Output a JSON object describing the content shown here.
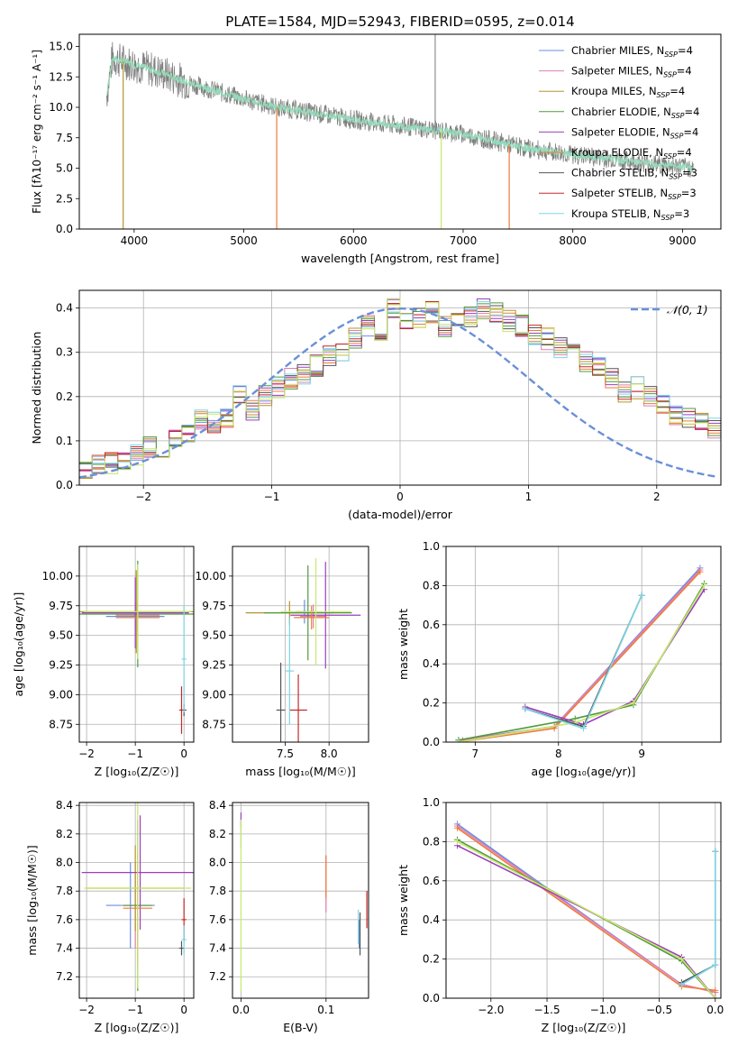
{
  "figure_title": "PLATE=1584, MJD=52943, FIBERID=0595, z=0.014",
  "colors": {
    "Chabrier MILES": "#6c8ee0",
    "Salpeter MILES": "#e27fb2",
    "Kroupa MILES": "#b5952d",
    "Chabrier ELODIE": "#4f9a3f",
    "Salpeter ELODIE": "#9a3fbf",
    "Kroupa ELODIE": "#ee7b3a",
    "Chabrier STELIB": "#555555",
    "Salpeter STELIB": "#c42a2a",
    "Kroupa STELIB": "#7dd6e6",
    "lime": "#c8e86a",
    "gaussian": "#6a90d8",
    "grid": "#b0b0b0"
  },
  "chart_data": [
    {
      "id": "spectrum",
      "type": "line",
      "title": "PLATE=1584, MJD=52943, FIBERID=0595, z=0.014",
      "xlabel": "wavelength [Angstrom, rest frame]",
      "ylabel": "Flux [fλ10⁻¹⁷ erg cm⁻² s⁻¹ A⁻¹]",
      "xlim": [
        3500,
        9350
      ],
      "ylim": [
        0,
        16
      ],
      "xticks": [
        4000,
        5000,
        6000,
        7000,
        8000,
        9000
      ],
      "yticks": [
        0.0,
        2.5,
        5.0,
        7.5,
        10.0,
        12.5,
        15.0
      ],
      "grid": false,
      "legend_position": "top-right",
      "legend": [
        "Chabrier MILES, N_SSP=4",
        "Salpeter MILES, N_SSP=4",
        "Kroupa MILES, N_SSP=4",
        "Chabrier ELODIE, N_SSP=4",
        "Salpeter ELODIE, N_SSP=4",
        "Kroupa ELODIE, N_SSP=4",
        "Chabrier STELIB, N_SSP=3",
        "Salpeter STELIB, N_SSP=3",
        "Kroupa STELIB, N_SSP=3"
      ],
      "data_envelope": {
        "x": [
          3750,
          3800,
          3900,
          4000,
          4200,
          4500,
          4800,
          5000,
          5300,
          5600,
          6000,
          6300,
          6600,
          7000,
          7300,
          7600,
          8000,
          8500,
          9000,
          9100
        ],
        "y": [
          11,
          14,
          13.8,
          13.5,
          13.0,
          12.0,
          11.2,
          10.7,
          10.0,
          9.6,
          9.0,
          8.6,
          8.3,
          7.8,
          7.2,
          6.6,
          6.1,
          5.6,
          5.1,
          5.0
        ]
      },
      "model_edges": [
        {
          "series": "Kroupa MILES",
          "x_end": 3900
        },
        {
          "series": "Kroupa ELODIE",
          "x_end": 5300
        },
        {
          "series": "lime",
          "x_end": 6800
        },
        {
          "series": "Kroupa ELODIE",
          "x_end": 7420
        }
      ],
      "sky_line_x": 6745
    },
    {
      "id": "residuals",
      "type": "line",
      "xlabel": "(data-model)/error",
      "ylabel": "Normed distribution",
      "xlim": [
        -2.5,
        2.5
      ],
      "ylim": [
        0,
        0.44
      ],
      "xticks": [
        -2,
        -1,
        0,
        1,
        2
      ],
      "yticks": [
        0.0,
        0.1,
        0.2,
        0.3,
        0.4
      ],
      "grid": true,
      "legend_position": "top-right",
      "legend": [
        "𝒩(0, 1)"
      ],
      "bin_width": 0.1,
      "bin_start": -2.5,
      "histogram_base": [
        0.04,
        0.045,
        0.05,
        0.06,
        0.07,
        0.085,
        0.08,
        0.1,
        0.12,
        0.15,
        0.14,
        0.15,
        0.2,
        0.17,
        0.2,
        0.22,
        0.24,
        0.25,
        0.27,
        0.29,
        0.3,
        0.33,
        0.36,
        0.35,
        0.4,
        0.37,
        0.38,
        0.39,
        0.36,
        0.37,
        0.38,
        0.4,
        0.39,
        0.37,
        0.36,
        0.34,
        0.33,
        0.31,
        0.3,
        0.28,
        0.27,
        0.24,
        0.21,
        0.22,
        0.2,
        0.18,
        0.16,
        0.15,
        0.14,
        0.13
      ],
      "gaussian": {
        "mu": 0,
        "sigma": 1,
        "name": "𝒩(0, 1)"
      }
    },
    {
      "id": "age_vs_Z",
      "type": "scatter",
      "xlabel": "Z [log₁₀(Z/Z☉)]",
      "ylabel": "age  [log₁₀(age/yr)]",
      "xlim": [
        -2.15,
        0.2
      ],
      "ylim": [
        8.6,
        10.25
      ],
      "xticks": [
        -2,
        -1,
        0
      ],
      "yticks": [
        8.75,
        9.0,
        9.25,
        9.5,
        9.75,
        10.0
      ],
      "grid": true,
      "points": [
        {
          "series": "Chabrier MILES",
          "x": -1.0,
          "y": 9.66,
          "xerr": 0.6,
          "yerr": 0.12
        },
        {
          "series": "Salpeter MILES",
          "x": -0.95,
          "y": 9.67,
          "xerr": 0.45,
          "yerr": 0.1
        },
        {
          "series": "Kroupa MILES",
          "x": -0.98,
          "y": 9.7,
          "xerr": 1.2,
          "yerr": 0.35
        },
        {
          "series": "Chabrier ELODIE",
          "x": -0.95,
          "y": 9.68,
          "xerr": 1.2,
          "yerr": 0.45
        },
        {
          "series": "Salpeter ELODIE",
          "x": -1.0,
          "y": 9.69,
          "xerr": 1.1,
          "yerr": 0.3
        },
        {
          "series": "Kroupa ELODIE",
          "x": -0.95,
          "y": 9.65,
          "xerr": 0.45,
          "yerr": 0.15
        },
        {
          "series": "Chabrier STELIB",
          "x": 0.0,
          "y": 8.87,
          "xerr": 0.05,
          "yerr": 0.05
        },
        {
          "series": "Salpeter STELIB",
          "x": -0.05,
          "y": 8.87,
          "xerr": 0.05,
          "yerr": 0.2
        },
        {
          "series": "Kroupa STELIB",
          "x": 0.0,
          "y": 9.3,
          "xerr": 0.05,
          "yerr": 0.45
        },
        {
          "series": "lime",
          "x": -0.95,
          "y": 9.7,
          "xerr": 1.1,
          "yerr": 0.4
        }
      ]
    },
    {
      "id": "age_vs_mass",
      "type": "scatter",
      "xlabel": "mass [log₁₀(M/M☉)]",
      "ylabel": "",
      "xlim": [
        6.9,
        8.45
      ],
      "ylim": [
        8.6,
        10.25
      ],
      "xticks": [
        7.5,
        8.0
      ],
      "yticks": [
        8.75,
        9.0,
        9.25,
        9.5,
        9.75,
        10.0
      ],
      "grid": true,
      "points": [
        {
          "series": "Chabrier MILES",
          "x": 7.72,
          "y": 9.7,
          "xerr": 0.1,
          "yerr": 0.1
        },
        {
          "series": "Salpeter MILES",
          "x": 7.82,
          "y": 9.66,
          "xerr": 0.15,
          "yerr": 0.1
        },
        {
          "series": "Kroupa MILES",
          "x": 7.55,
          "y": 9.69,
          "xerr": 0.5,
          "yerr": 0.1
        },
        {
          "series": "Chabrier ELODIE",
          "x": 7.76,
          "y": 9.69,
          "xerr": 0.5,
          "yerr": 0.4
        },
        {
          "series": "Salpeter ELODIE",
          "x": 7.96,
          "y": 9.67,
          "xerr": 0.4,
          "yerr": 0.45
        },
        {
          "series": "Kroupa ELODIE",
          "x": 7.8,
          "y": 9.65,
          "xerr": 0.2,
          "yerr": 0.1
        },
        {
          "series": "Chabrier STELIB",
          "x": 7.45,
          "y": 8.87,
          "xerr": 0.05,
          "yerr": 0.4
        },
        {
          "series": "Salpeter STELIB",
          "x": 7.65,
          "y": 8.87,
          "xerr": 0.1,
          "yerr": 0.3
        },
        {
          "series": "Kroupa STELIB",
          "x": 7.55,
          "y": 9.2,
          "xerr": 0.05,
          "yerr": 0.45
        },
        {
          "series": "lime",
          "x": 7.85,
          "y": 9.7,
          "xerr": 0.4,
          "yerr": 0.45
        }
      ]
    },
    {
      "id": "weight_vs_age",
      "type": "line",
      "xlabel": "age  [log₁₀(age/yr)]",
      "ylabel": "mass weight",
      "xlim": [
        6.65,
        9.95
      ],
      "ylim": [
        0,
        1.0
      ],
      "xticks": [
        7,
        8,
        9
      ],
      "yticks": [
        0.0,
        0.2,
        0.4,
        0.6,
        0.8,
        1.0
      ],
      "grid": true,
      "series": [
        {
          "key": "Chabrier MILES",
          "x": [
            6.8,
            7.95,
            9.7
          ],
          "y": [
            0.01,
            0.08,
            0.89
          ]
        },
        {
          "key": "Salpeter MILES",
          "x": [
            6.85,
            7.95,
            9.7
          ],
          "y": [
            0.01,
            0.08,
            0.88
          ]
        },
        {
          "key": "Kroupa ELODIE",
          "x": [
            6.8,
            7.95,
            9.7
          ],
          "y": [
            0.0,
            0.07,
            0.87
          ]
        },
        {
          "key": "Chabrier ELODIE",
          "x": [
            6.8,
            8.2,
            8.9,
            9.75
          ],
          "y": [
            0.01,
            0.12,
            0.19,
            0.81
          ]
        },
        {
          "key": "Salpeter ELODIE",
          "x": [
            7.6,
            8.3,
            8.9,
            9.75
          ],
          "y": [
            0.18,
            0.09,
            0.21,
            0.78
          ]
        },
        {
          "key": "lime",
          "x": [
            6.8,
            8.2,
            8.9,
            9.75
          ],
          "y": [
            0.0,
            0.1,
            0.2,
            0.8
          ]
        },
        {
          "key": "Chabrier STELIB",
          "x": [
            7.6,
            8.3,
            9.0
          ],
          "y": [
            0.17,
            0.08,
            0.75
          ]
        },
        {
          "key": "Kroupa STELIB",
          "x": [
            7.6,
            8.3,
            9.0
          ],
          "y": [
            0.17,
            0.07,
            0.75
          ]
        }
      ]
    },
    {
      "id": "mass_vs_Z",
      "type": "scatter",
      "xlabel": "Z [log₁₀(Z/Z☉)]",
      "ylabel": "mass [log₁₀(M/M☉)]",
      "xlim": [
        -2.15,
        0.2
      ],
      "ylim": [
        7.05,
        8.42
      ],
      "xticks": [
        -2,
        -1,
        0
      ],
      "yticks": [
        7.2,
        7.4,
        7.6,
        7.8,
        8.0,
        8.2,
        8.4
      ],
      "grid": true,
      "points": [
        {
          "series": "Chabrier MILES",
          "x": -1.1,
          "y": 7.7,
          "xerr": 0.5,
          "yerr": 0.3
        },
        {
          "series": "Salpeter MILES",
          "x": -1.0,
          "y": 7.7,
          "xerr": 0.3,
          "yerr": 0.3
        },
        {
          "series": "Kroupa MILES",
          "x": -1.0,
          "y": 7.82,
          "xerr": 1.0,
          "yerr": 0.3
        },
        {
          "series": "Chabrier ELODIE",
          "x": -0.95,
          "y": 7.7,
          "xerr": 0.3,
          "yerr": 0.6
        },
        {
          "series": "Salpeter ELODIE",
          "x": -0.9,
          "y": 7.93,
          "xerr": 1.2,
          "yerr": 0.4
        },
        {
          "series": "Kroupa ELODIE",
          "x": -0.95,
          "y": 7.68,
          "xerr": 0.3,
          "yerr": 0.4
        },
        {
          "series": "Chabrier STELIB",
          "x": -0.05,
          "y": 7.4,
          "xerr": 0.05,
          "yerr": 0.05
        },
        {
          "series": "Salpeter STELIB",
          "x": 0.0,
          "y": 7.6,
          "xerr": 0.05,
          "yerr": 0.15
        },
        {
          "series": "Kroupa STELIB",
          "x": 0.0,
          "y": 7.46,
          "xerr": 0.05,
          "yerr": 0.1
        },
        {
          "series": "lime",
          "x": -0.95,
          "y": 7.82,
          "xerr": 1.1,
          "yerr": 0.7
        }
      ]
    },
    {
      "id": "mass_vs_EBV",
      "type": "scatter",
      "xlabel": "E(B-V)",
      "ylabel": "",
      "xlim": [
        -0.01,
        0.15
      ],
      "ylim": [
        7.05,
        8.42
      ],
      "xticks": [
        0.0,
        0.1
      ],
      "yticks": [
        7.2,
        7.4,
        7.6,
        7.8,
        8.0,
        8.2,
        8.4
      ],
      "grid": true,
      "points": [
        {
          "series": "Chabrier MILES",
          "x": 0.0,
          "y": 8.2,
          "yerr": 0.1
        },
        {
          "series": "Salpeter ELODIE",
          "x": 0.0,
          "y": 8.3,
          "yerr": 0.05
        },
        {
          "series": "lime",
          "x": 0.0,
          "y": 7.7,
          "yerr": 0.6
        },
        {
          "series": "Salpeter MILES",
          "x": 0.1,
          "y": 7.85,
          "yerr": 0.2
        },
        {
          "series": "Kroupa ELODIE",
          "x": 0.1,
          "y": 7.9,
          "yerr": 0.15
        },
        {
          "series": "Chabrier MILES",
          "x": 0.139,
          "y": 7.5,
          "yerr": 0.1
        },
        {
          "series": "Chabrier STELIB",
          "x": 0.14,
          "y": 7.5,
          "yerr": 0.15
        },
        {
          "series": "Kroupa STELIB",
          "x": 0.138,
          "y": 7.55,
          "yerr": 0.12
        },
        {
          "series": "Salpeter STELIB",
          "x": 0.148,
          "y": 7.67,
          "yerr": 0.13
        }
      ]
    },
    {
      "id": "weight_vs_Z",
      "type": "line",
      "xlabel": "Z [log₁₀(Z/Z☉)]",
      "ylabel": "mass weight",
      "xlim": [
        -2.4,
        0.05
      ],
      "ylim": [
        0,
        1.0
      ],
      "xticks": [
        -2.0,
        -1.5,
        -1.0,
        -0.5,
        0.0
      ],
      "yticks": [
        0.0,
        0.2,
        0.4,
        0.6,
        0.8,
        1.0
      ],
      "grid": true,
      "series": [
        {
          "key": "Chabrier MILES",
          "x": [
            -2.3,
            -0.3,
            0.0
          ],
          "y": [
            0.89,
            0.07,
            0.03
          ]
        },
        {
          "key": "Salpeter MILES",
          "x": [
            -2.3,
            -0.3,
            0.0
          ],
          "y": [
            0.88,
            0.07,
            0.03
          ]
        },
        {
          "key": "Kroupa ELODIE",
          "x": [
            -2.3,
            -0.3,
            0.0
          ],
          "y": [
            0.87,
            0.06,
            0.04
          ]
        },
        {
          "key": "Chabrier ELODIE",
          "x": [
            -2.3,
            -0.3,
            0.0
          ],
          "y": [
            0.81,
            0.19,
            0.0
          ]
        },
        {
          "key": "Salpeter ELODIE",
          "x": [
            -2.3,
            -0.3,
            0.0
          ],
          "y": [
            0.78,
            0.21,
            0.0
          ]
        },
        {
          "key": "lime",
          "x": [
            -2.3,
            -0.3,
            0.0
          ],
          "y": [
            0.8,
            0.2,
            0.0
          ]
        },
        {
          "key": "Chabrier STELIB",
          "x": [
            -0.3,
            0.0,
            0.0
          ],
          "y": [
            0.08,
            0.17,
            0.75
          ]
        },
        {
          "key": "Kroupa STELIB",
          "x": [
            -0.3,
            0.0,
            0.0
          ],
          "y": [
            0.07,
            0.17,
            0.75
          ]
        }
      ]
    }
  ]
}
